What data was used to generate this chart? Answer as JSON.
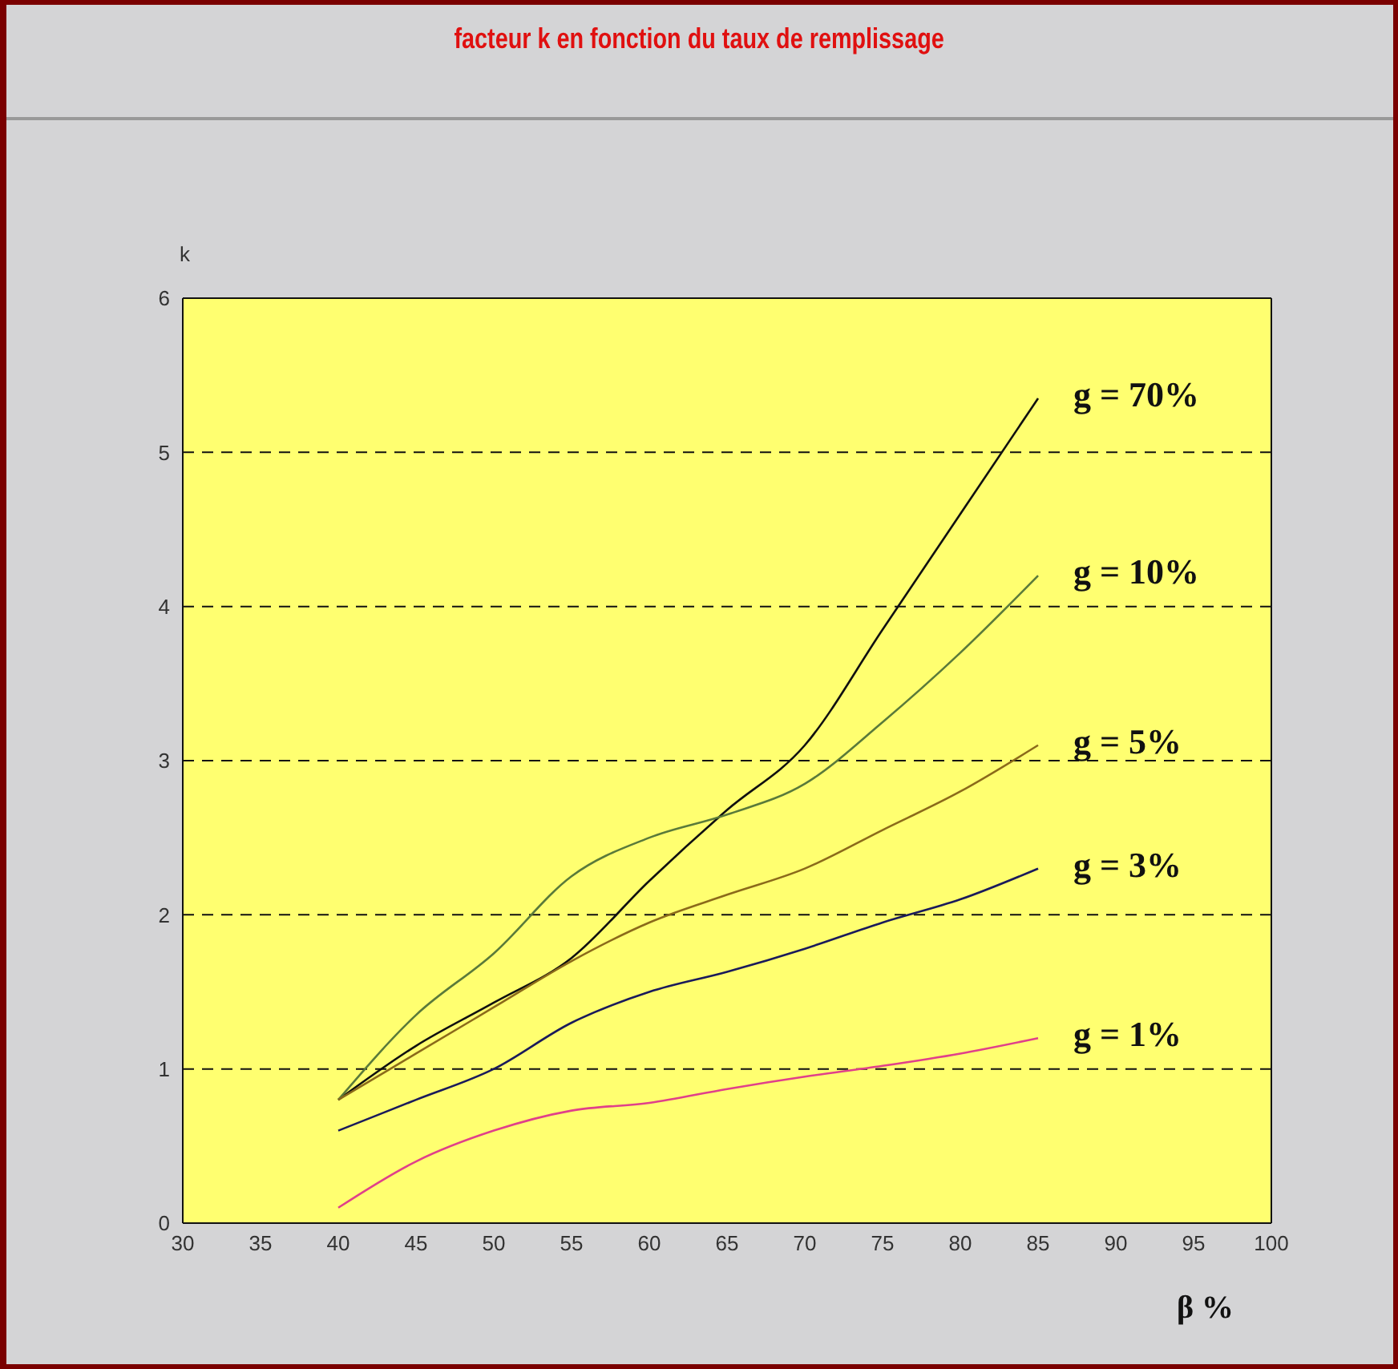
{
  "chart_data": {
    "type": "line",
    "title": "facteur k en fonction du taux de remplissage",
    "xlabel": "β %",
    "ylabel": "k",
    "x": [
      40,
      45,
      50,
      55,
      60,
      65,
      70,
      75,
      80,
      85
    ],
    "series": [
      {
        "name": "g = 70%",
        "color": "#101010",
        "values": [
          0.8,
          1.15,
          1.43,
          1.72,
          2.22,
          2.68,
          3.1,
          3.85,
          4.6,
          5.35
        ]
      },
      {
        "name": "g = 10%",
        "color": "#5a7a3a",
        "values": [
          0.8,
          1.35,
          1.75,
          2.25,
          2.5,
          2.65,
          2.85,
          3.25,
          3.7,
          4.2
        ]
      },
      {
        "name": "g = 5%",
        "color": "#8b6a1a",
        "values": [
          0.8,
          1.1,
          1.4,
          1.7,
          1.95,
          2.13,
          2.3,
          2.55,
          2.8,
          3.1
        ]
      },
      {
        "name": "g = 3%",
        "color": "#1a1a5a",
        "values": [
          0.6,
          0.8,
          1.0,
          1.3,
          1.5,
          1.63,
          1.78,
          1.95,
          2.1,
          2.3
        ]
      },
      {
        "name": "g = 1%",
        "color": "#e0408a",
        "values": [
          0.1,
          0.4,
          0.6,
          0.73,
          0.78,
          0.87,
          0.95,
          1.02,
          1.1,
          1.2
        ]
      }
    ],
    "xlim": [
      30,
      100
    ],
    "xticks": [
      30,
      35,
      40,
      45,
      50,
      55,
      60,
      65,
      70,
      75,
      80,
      85,
      90,
      95,
      100
    ],
    "ylim": [
      0,
      6
    ],
    "yticks": [
      0,
      1,
      2,
      3,
      4,
      5,
      6
    ],
    "grid": "y",
    "marker": "none",
    "line_style": "solid"
  }
}
